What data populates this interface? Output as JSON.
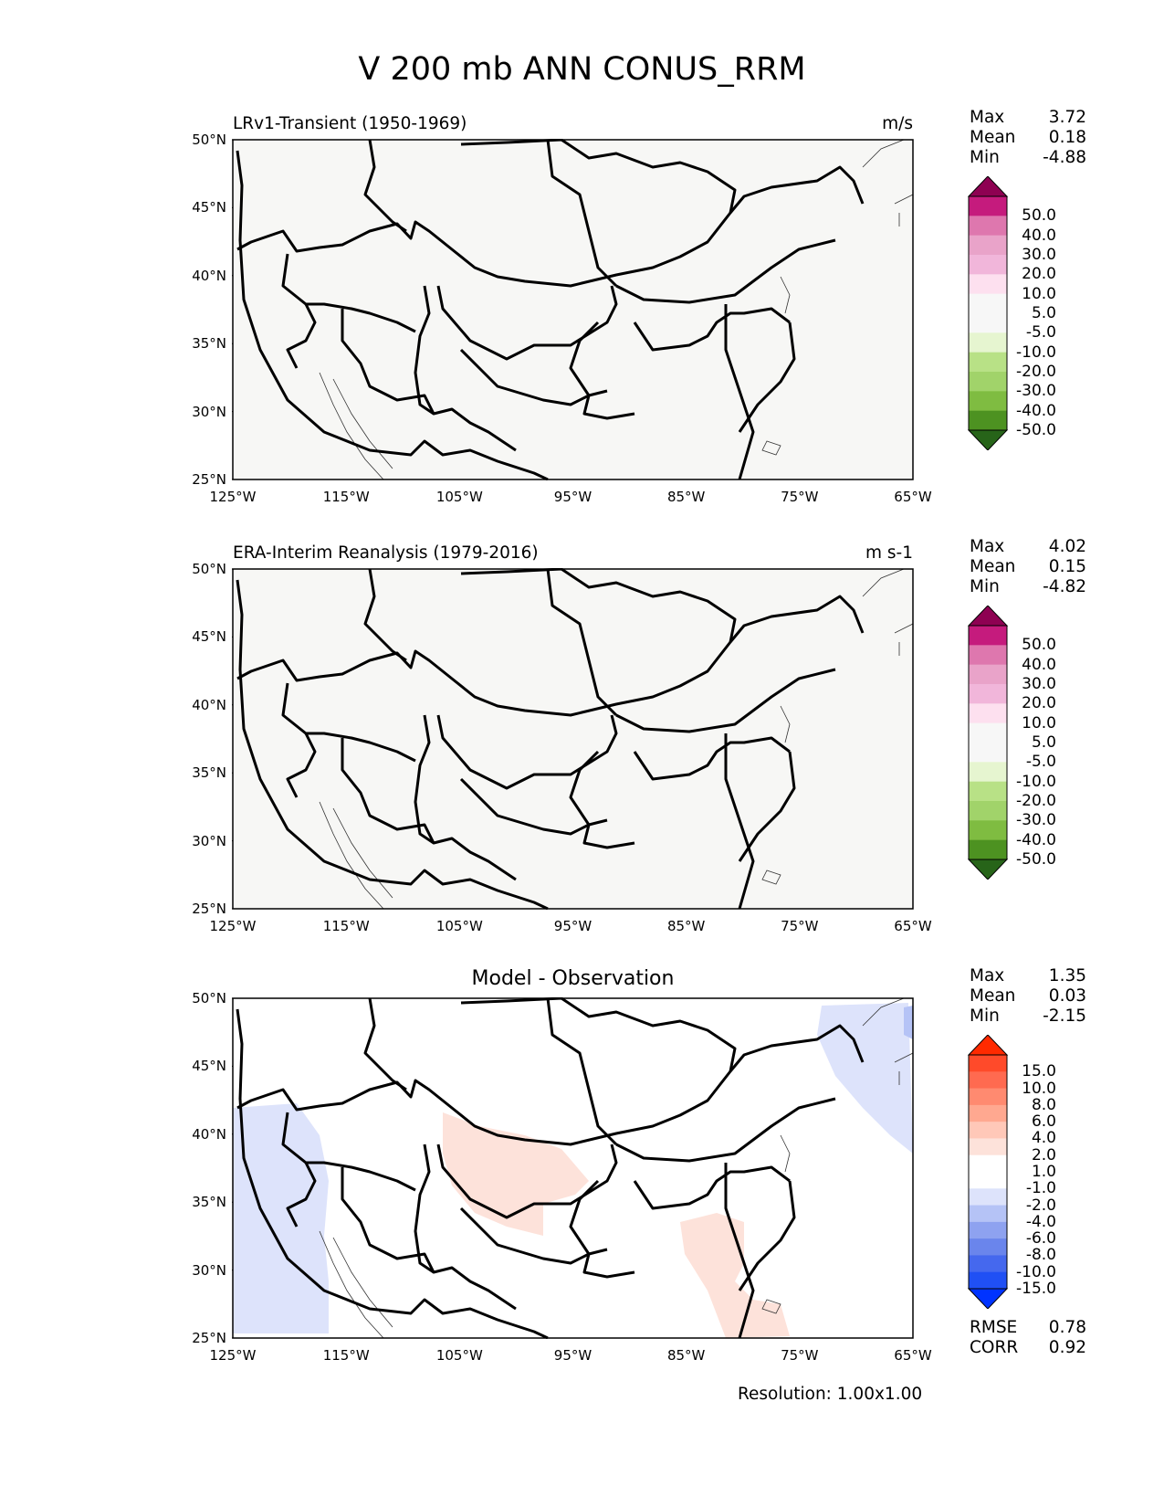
{
  "title": "V 200 mb ANN CONUS_RRM",
  "lat_ticks": [
    "50°N",
    "45°N",
    "40°N",
    "35°N",
    "30°N",
    "25°N"
  ],
  "lon_ticks": [
    "125°W",
    "115°W",
    "105°W",
    "95°W",
    "85°W",
    "75°W",
    "65°W"
  ],
  "panels": [
    {
      "title": "LRv1-Transient (1950-1969)",
      "units": "m/s",
      "stats": {
        "max_label": "Max",
        "max": "3.72",
        "mean_label": "Mean",
        "mean": "0.18",
        "min_label": "Min",
        "min": "-4.88"
      },
      "colorbar_labels": [
        "50.0",
        "40.0",
        "30.0",
        "20.0",
        "10.0",
        "5.0",
        "-5.0",
        "-10.0",
        "-20.0",
        "-30.0",
        "-40.0",
        "-50.0"
      ],
      "colorbar_colors": [
        "#8e0152",
        "#c51b7d",
        "#de77ae",
        "#e9a3c9",
        "#f1b6da",
        "#fde0ef",
        "#f7f7f7",
        "#f7f7f7",
        "#e6f5d0",
        "#b8e186",
        "#a1d36a",
        "#7fbc41",
        "#4d9221",
        "#276419"
      ],
      "background": "#f7f7f5"
    },
    {
      "title": "ERA-Interim Reanalysis (1979-2016)",
      "units": "m s-1",
      "stats": {
        "max_label": "Max",
        "max": "4.02",
        "mean_label": "Mean",
        "mean": "0.15",
        "min_label": "Min",
        "min": "-4.82"
      },
      "colorbar_labels": [
        "50.0",
        "40.0",
        "30.0",
        "20.0",
        "10.0",
        "5.0",
        "-5.0",
        "-10.0",
        "-20.0",
        "-30.0",
        "-40.0",
        "-50.0"
      ],
      "colorbar_colors": [
        "#8e0152",
        "#c51b7d",
        "#de77ae",
        "#e9a3c9",
        "#f1b6da",
        "#fde0ef",
        "#f7f7f7",
        "#f7f7f7",
        "#e6f5d0",
        "#b8e186",
        "#a1d36a",
        "#7fbc41",
        "#4d9221",
        "#276419"
      ],
      "background": "#f7f7f5"
    },
    {
      "title": "Model - Observation",
      "units": "",
      "stats": {
        "max_label": "Max",
        "max": "1.35",
        "mean_label": "Mean",
        "mean": "0.03",
        "min_label": "Min",
        "min": "-2.15"
      },
      "colorbar_labels": [
        "15.0",
        "10.0",
        "8.0",
        "6.0",
        "4.0",
        "2.0",
        "1.0",
        "-1.0",
        "-2.0",
        "-4.0",
        "-6.0",
        "-8.0",
        "-10.0",
        "-15.0"
      ],
      "colorbar_colors": [
        "#ff2a00",
        "#ff4a2a",
        "#ff6a50",
        "#ff8a70",
        "#ffa890",
        "#ffc8b8",
        "#fde2da",
        "#ffffff",
        "#ffffff",
        "#dde3fb",
        "#b5c3f6",
        "#8ea2f0",
        "#6a85ec",
        "#4568ee",
        "#2050f4",
        "#0033ff"
      ],
      "background": "#ffffff",
      "extra_stats": {
        "rmse_label": "RMSE",
        "rmse": "0.78",
        "corr_label": "CORR",
        "corr": "0.92"
      }
    }
  ],
  "footer": "Resolution: 1.00x1.00"
}
